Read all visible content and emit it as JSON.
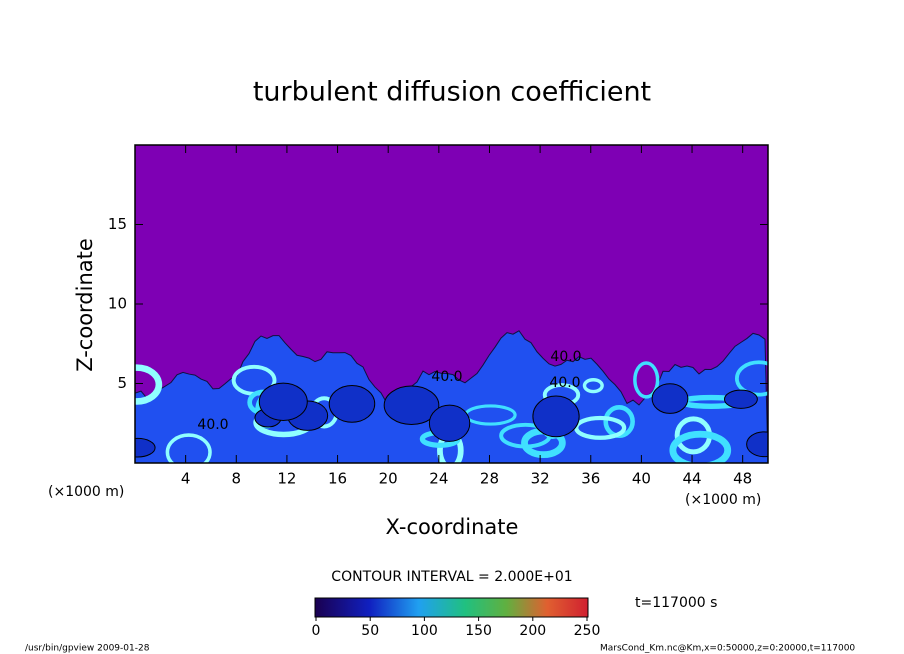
{
  "chart_data": {
    "type": "contour",
    "title": "turbulent diffusion coefficient",
    "x_label": "X-coordinate",
    "y_label": "Z-coordinate",
    "x_unit": "(×1000 m)",
    "y_unit": "(×1000 m)",
    "xlim": [
      0,
      50
    ],
    "ylim": [
      0,
      20
    ],
    "xticks": [
      4,
      8,
      12,
      16,
      20,
      24,
      28,
      32,
      36,
      40,
      44,
      48
    ],
    "yticks": [
      5,
      10,
      15
    ],
    "contour_labels": [
      "40.0",
      "40.0",
      "40.0",
      "40.0"
    ],
    "contour_interval": "CONTOUR INTERVAL = 2.000E+01",
    "colorbar": {
      "lim": [
        0,
        250
      ],
      "ticks": [
        0,
        50,
        100,
        150,
        200,
        250
      ]
    },
    "time_label": "t=117000 s",
    "footer_left": "/usr/bin/gpview   2009-01-28",
    "footer_right": "MarsCond_Km.nc@Km,x=0:50000,z=0:20000,t=117000"
  }
}
